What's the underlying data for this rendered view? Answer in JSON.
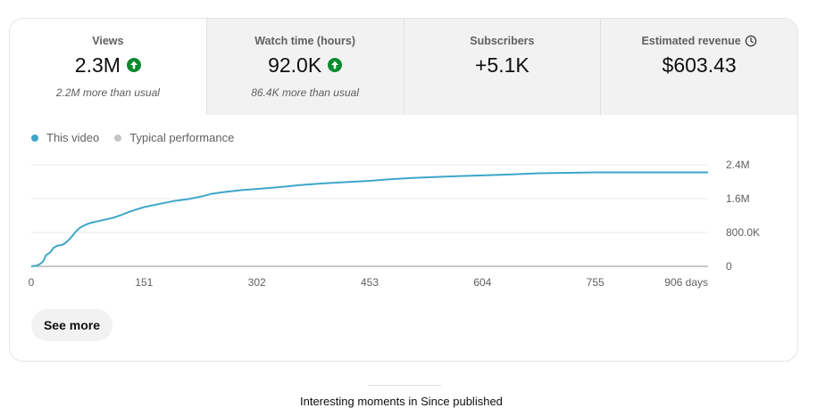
{
  "metrics": [
    {
      "title": "Views",
      "value": "2.3M",
      "sub": "2.2M more than usual",
      "trend": "up",
      "icon": "arrow-up-icon"
    },
    {
      "title": "Watch time (hours)",
      "value": "92.0K",
      "sub": "86.4K more than usual",
      "trend": "up",
      "icon": "arrow-up-icon"
    },
    {
      "title": "Subscribers",
      "value": "+5.1K",
      "sub": "",
      "trend": "none"
    },
    {
      "title": "Estimated revenue",
      "value": "$603.43",
      "sub": "",
      "trend": "none",
      "icon": "clock-icon"
    }
  ],
  "legend": {
    "this_video": "This video",
    "typical": "Typical performance"
  },
  "colors": {
    "this_video": "#3ea6c9",
    "typical": "#c6c6c6",
    "up": "#0b8a2e",
    "grid": "#e8e8e8",
    "axis": "#909090"
  },
  "see_more_label": "See more",
  "below_text": "Interesting moments in Since published",
  "chart_data": {
    "type": "line",
    "x_ticks": [
      0,
      151,
      302,
      453,
      604,
      755,
      906
    ],
    "x_tick_labels": [
      "0",
      "151",
      "302",
      "453",
      "604",
      "755",
      "906 days"
    ],
    "y_ticks": [
      0,
      800000,
      1600000,
      2400000
    ],
    "y_tick_labels": [
      "0",
      "800.0K",
      "1.6M",
      "2.4M"
    ],
    "xlim": [
      0,
      906
    ],
    "ylim": [
      0,
      2400000
    ],
    "series": [
      {
        "name": "This video",
        "x": [
          0,
          8,
          12,
          16,
          20,
          25,
          30,
          35,
          40,
          45,
          50,
          55,
          60,
          65,
          70,
          75,
          80,
          90,
          100,
          110,
          120,
          130,
          140,
          151,
          170,
          190,
          210,
          230,
          240,
          260,
          280,
          302,
          330,
          360,
          390,
          420,
          453,
          480,
          510,
          540,
          570,
          604,
          640,
          680,
          720,
          755,
          800,
          850,
          906
        ],
        "y": [
          0,
          20000,
          60000,
          120000,
          270000,
          320000,
          440000,
          490000,
          500000,
          540000,
          620000,
          720000,
          830000,
          910000,
          960000,
          1000000,
          1030000,
          1070000,
          1110000,
          1150000,
          1210000,
          1280000,
          1340000,
          1400000,
          1470000,
          1540000,
          1590000,
          1660000,
          1710000,
          1760000,
          1800000,
          1830000,
          1870000,
          1920000,
          1960000,
          1990000,
          2020000,
          2060000,
          2090000,
          2110000,
          2130000,
          2150000,
          2170000,
          2200000,
          2210000,
          2220000,
          2220000,
          2220000,
          2220000
        ]
      }
    ]
  }
}
